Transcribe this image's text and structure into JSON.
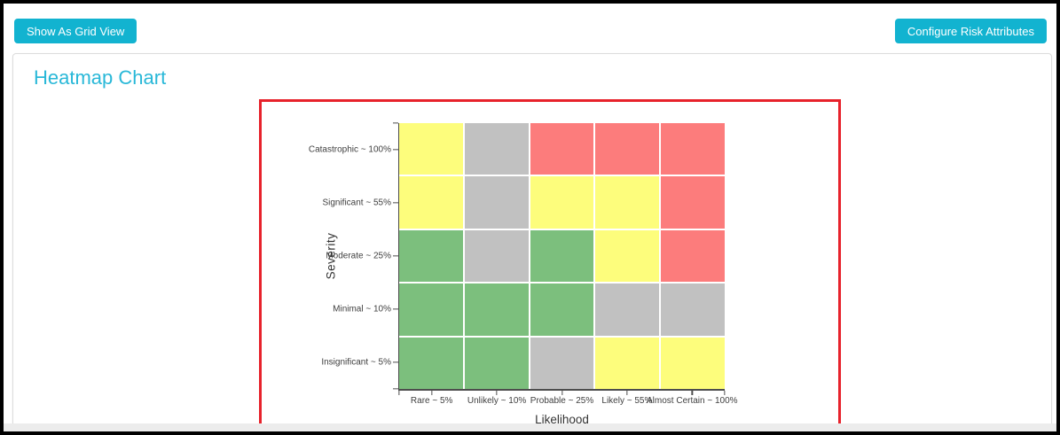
{
  "header": {
    "left_button": "Show As Grid View",
    "right_button": "Configure Risk Attributes",
    "button_color": "#12b3d0"
  },
  "panel": {
    "title": "Heatmap Chart",
    "title_color": "#29b8d8"
  },
  "highlight_box": {
    "border_color": "#e7222b"
  },
  "chart_data": {
    "type": "heatmap",
    "title": "",
    "xlabel": "Likelihood",
    "ylabel": "Severity",
    "x_categories": [
      "Rare ~ 5%",
      "Unlikely ~ 10%",
      "Probable ~ 25%",
      "Likely ~ 55%",
      "Almost Certain ~ 100%"
    ],
    "y_categories": [
      "Catastrophic ~ 100%",
      "Significant ~ 55%",
      "Moderate ~ 25%",
      "Minimal ~ 10%",
      "Insignificant ~ 5%"
    ],
    "cells": [
      [
        "yellow",
        "gray",
        "red",
        "red",
        "red"
      ],
      [
        "yellow",
        "gray",
        "yellow",
        "yellow",
        "red"
      ],
      [
        "green",
        "gray",
        "green",
        "yellow",
        "red"
      ],
      [
        "green",
        "green",
        "green",
        "gray",
        "gray"
      ],
      [
        "green",
        "green",
        "gray",
        "yellow",
        "yellow"
      ]
    ],
    "cell_colors": {
      "green": "#7cbf7d",
      "yellow": "#fdfd7c",
      "gray": "#c1c1c1",
      "red": "#fc7c7c"
    },
    "grid_gap_color": "#ffffff",
    "legend_position": "none"
  }
}
